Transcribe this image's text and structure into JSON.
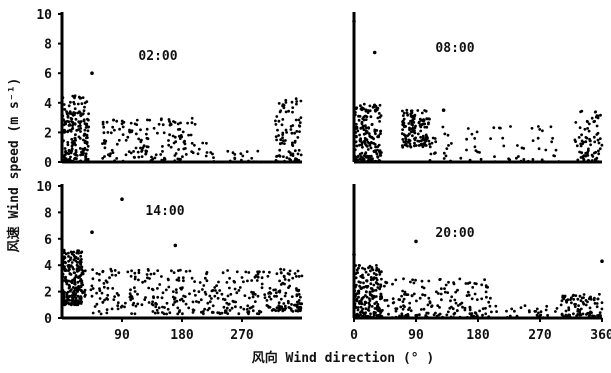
{
  "figure": {
    "ylabel": "风速 Wind speed (m s⁻¹)",
    "xlabel": "风向 Wind direction (° )"
  },
  "chart_data": [
    {
      "type": "scatter",
      "title": "02:00",
      "xlim": [
        0,
        360
      ],
      "ylim": [
        0,
        10
      ],
      "yticks": [
        0,
        2,
        4,
        6,
        8,
        10
      ],
      "xticks": [],
      "points_summary": "Dense cluster 0–40° at 0–4.5 m/s; moderate scatter 60–200° at 0–3; sparse 200–300° below 1.5; cluster 320–360° at 0–4.3; outlier near 45° at 6.0",
      "clusters": [
        {
          "x": [
            0,
            40
          ],
          "y": [
            0,
            4.5
          ],
          "n": 200
        },
        {
          "x": [
            60,
            200
          ],
          "y": [
            0,
            3
          ],
          "n": 150
        },
        {
          "x": [
            200,
            300
          ],
          "y": [
            0,
            1.5
          ],
          "n": 30
        },
        {
          "x": [
            320,
            360
          ],
          "y": [
            0,
            4.3
          ],
          "n": 90
        }
      ],
      "outliers": [
        [
          45,
          6.0
        ]
      ]
    },
    {
      "type": "scatter",
      "title": "08:00",
      "xlim": [
        0,
        360
      ],
      "ylim": [
        0,
        10
      ],
      "yticks": [],
      "xticks": [],
      "clusters": [
        {
          "x": [
            0,
            40
          ],
          "y": [
            0,
            4.0
          ],
          "n": 200
        },
        {
          "x": [
            70,
            110
          ],
          "y": [
            1,
            3.5
          ],
          "n": 140
        },
        {
          "x": [
            110,
            300
          ],
          "y": [
            0,
            2.5
          ],
          "n": 70
        },
        {
          "x": [
            320,
            360
          ],
          "y": [
            0,
            3.5
          ],
          "n": 80
        }
      ],
      "outliers": [
        [
          30,
          7.4
        ],
        [
          0,
          9.5
        ],
        [
          130,
          3.5
        ]
      ]
    },
    {
      "type": "scatter",
      "title": "14:00",
      "xlim": [
        0,
        360
      ],
      "ylim": [
        0,
        10
      ],
      "yticks": [
        0,
        2,
        4,
        6,
        8,
        10
      ],
      "xticks": [
        90,
        180,
        270
      ],
      "clusters": [
        {
          "x": [
            0,
            30
          ],
          "y": [
            1,
            5.2
          ],
          "n": 230
        },
        {
          "x": [
            30,
            320
          ],
          "y": [
            0.3,
            3.7
          ],
          "n": 320
        },
        {
          "x": [
            320,
            360
          ],
          "y": [
            0.5,
            3.8
          ],
          "n": 90
        }
      ],
      "outliers": [
        [
          90,
          9.0
        ],
        [
          45,
          6.5
        ],
        [
          170,
          5.5
        ]
      ]
    },
    {
      "type": "scatter",
      "title": "20:00",
      "xlim": [
        0,
        360
      ],
      "ylim": [
        0,
        10
      ],
      "yticks": [],
      "xticks": [
        0,
        90,
        180,
        270,
        360
      ],
      "clusters": [
        {
          "x": [
            0,
            40
          ],
          "y": [
            0,
            4
          ],
          "n": 200
        },
        {
          "x": [
            40,
            200
          ],
          "y": [
            0,
            3
          ],
          "n": 180
        },
        {
          "x": [
            200,
            300
          ],
          "y": [
            0,
            1
          ],
          "n": 30
        },
        {
          "x": [
            300,
            360
          ],
          "y": [
            0,
            1.8
          ],
          "n": 100
        }
      ],
      "outliers": [
        [
          0,
          4.8
        ],
        [
          90,
          5.8
        ],
        [
          360,
          4.3
        ]
      ]
    }
  ]
}
